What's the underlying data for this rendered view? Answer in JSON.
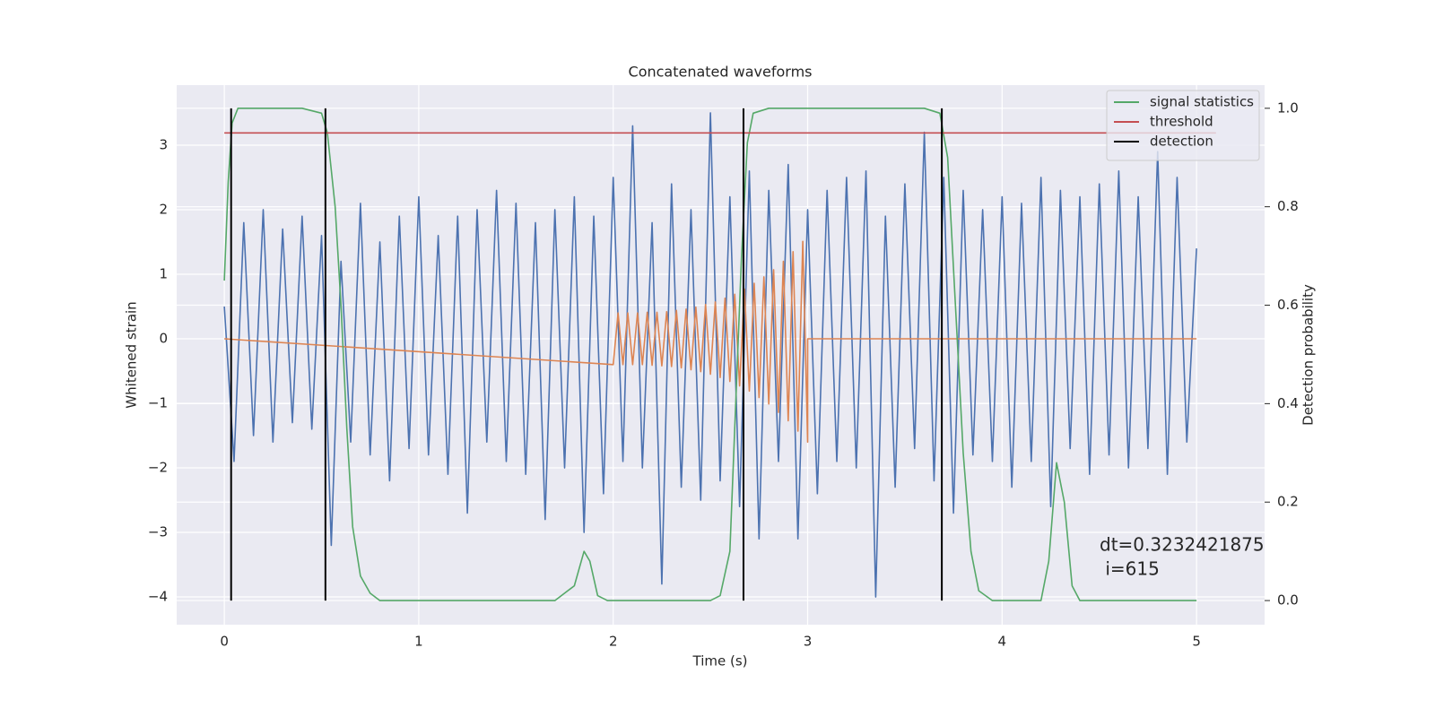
{
  "chart_data": {
    "type": "line",
    "title": "Concatenated waveforms",
    "x_label": "Time (s)",
    "y_label": "Whitened strain",
    "y2_label": "Detection probability",
    "xlim": [
      -0.245,
      5.35
    ],
    "ylim": [
      -4.43,
      3.93
    ],
    "y2lim": [
      -0.049,
      1.047
    ],
    "xticks": [
      0,
      1,
      2,
      3,
      4,
      5
    ],
    "yticks": [
      {
        "value": -4,
        "label": "−4"
      },
      {
        "value": -3,
        "label": "−3"
      },
      {
        "value": -2,
        "label": "−2"
      },
      {
        "value": -1,
        "label": "−1"
      },
      0,
      1,
      2,
      3
    ],
    "y2ticks": [
      {
        "value": 0,
        "label": "0.0"
      },
      {
        "value": 0.2,
        "label": "0.2"
      },
      {
        "value": 0.4,
        "label": "0.4"
      },
      {
        "value": 0.6,
        "label": "0.6"
      },
      {
        "value": 0.8,
        "label": "0.8"
      },
      {
        "value": 1.0,
        "label": "1.0"
      }
    ],
    "grid": true,
    "legend": "upper right",
    "series": [
      {
        "color": "#4c72b0",
        "x": [
          0,
          0.05,
          0.1,
          0.15,
          0.2,
          0.25,
          0.3,
          0.35,
          0.4,
          0.45,
          0.5,
          0.55,
          0.6,
          0.65,
          0.7,
          0.75,
          0.8,
          0.85,
          0.9,
          0.95,
          1,
          1.05,
          1.1,
          1.15,
          1.2,
          1.25,
          1.3,
          1.35,
          1.4,
          1.45,
          1.5,
          1.55,
          1.6,
          1.65,
          1.7,
          1.75,
          1.8,
          1.85,
          1.9,
          1.95,
          2,
          2.05,
          2.1,
          2.15,
          2.2,
          2.25,
          2.3,
          2.35,
          2.4,
          2.45,
          2.5,
          2.55,
          2.6,
          2.65,
          2.7,
          2.75,
          2.8,
          2.85,
          2.9,
          2.95,
          3,
          3.05,
          3.1,
          3.15,
          3.2,
          3.25,
          3.3,
          3.35,
          3.4,
          3.45,
          3.5,
          3.55,
          3.6,
          3.65,
          3.7,
          3.75,
          3.8,
          3.85,
          3.9,
          3.95,
          4,
          4.05,
          4.1,
          4.15,
          4.2,
          4.25,
          4.3,
          4.35,
          4.4,
          4.45,
          4.5,
          4.55,
          4.6,
          4.65,
          4.7,
          4.75,
          4.8,
          4.85,
          4.9,
          4.95,
          5
        ],
        "values": [
          0.5,
          -1.9,
          1.8,
          -1.5,
          2.0,
          -1.6,
          1.7,
          -1.3,
          1.9,
          -1.4,
          1.6,
          -3.2,
          1.2,
          -1.6,
          2.1,
          -1.8,
          1.5,
          -2.2,
          1.9,
          -1.7,
          2.2,
          -1.8,
          1.6,
          -2.1,
          1.9,
          -2.7,
          2.0,
          -1.6,
          2.3,
          -1.9,
          2.1,
          -2.1,
          1.8,
          -2.8,
          2.0,
          -2.0,
          2.2,
          -3.0,
          1.9,
          -2.4,
          2.5,
          -1.9,
          3.3,
          -2.0,
          1.8,
          -3.8,
          2.4,
          -2.3,
          2.0,
          -2.5,
          3.5,
          -2.2,
          2.2,
          -2.6,
          2.6,
          -3.1,
          2.3,
          -1.9,
          2.7,
          -3.1,
          2.0,
          -2.4,
          2.3,
          -1.9,
          2.5,
          -2.0,
          2.6,
          -4.0,
          1.9,
          -2.3,
          2.4,
          -1.7,
          3.2,
          -2.2,
          2.5,
          -2.7,
          2.3,
          -1.8,
          2.0,
          -1.9,
          2.2,
          -2.3,
          2.1,
          -1.9,
          2.5,
          -2.6,
          2.3,
          -1.7,
          2.2,
          -2.1,
          2.4,
          -1.8,
          2.6,
          -2.0,
          2.2,
          -1.7,
          2.9,
          -2.1,
          2.5,
          -1.6,
          1.4
        ]
      },
      {
        "color": "#dd8452",
        "x": [
          0,
          2,
          2.025,
          2.05,
          2.075,
          2.1,
          2.125,
          2.15,
          2.175,
          2.2,
          2.225,
          2.25,
          2.275,
          2.3,
          2.325,
          2.35,
          2.375,
          2.4,
          2.425,
          2.45,
          2.475,
          2.5,
          2.525,
          2.55,
          2.575,
          2.6,
          2.625,
          2.65,
          2.675,
          2.7,
          2.725,
          2.75,
          2.775,
          2.8,
          2.825,
          2.85,
          2.875,
          2.9,
          2.925,
          2.95,
          2.975,
          3,
          3,
          5
        ],
        "values": [
          0,
          -0.4,
          0.4,
          -0.4,
          0.4,
          -0.4,
          0.4,
          -0.4,
          0.41,
          -0.41,
          0.41,
          -0.42,
          0.42,
          -0.43,
          0.44,
          -0.45,
          0.46,
          -0.48,
          0.49,
          -0.51,
          0.53,
          -0.55,
          0.57,
          -0.6,
          0.63,
          -0.66,
          0.69,
          -0.73,
          0.77,
          -0.81,
          0.86,
          -0.91,
          0.96,
          -1.01,
          1.07,
          -1.14,
          1.2,
          -1.27,
          1.35,
          -1.43,
          1.51,
          -1.6,
          0,
          0
        ]
      },
      {
        "name": "signal statistics",
        "color": "#55a868",
        "axis": "y2",
        "x": [
          0,
          0.02,
          0.04,
          0.07,
          0.1,
          0.4,
          0.5,
          0.53,
          0.57,
          0.6,
          0.63,
          0.66,
          0.7,
          0.75,
          0.8,
          1.7,
          1.8,
          1.85,
          1.88,
          1.92,
          1.97,
          2.5,
          2.55,
          2.6,
          2.63,
          2.66,
          2.69,
          2.72,
          2.8,
          3.6,
          3.68,
          3.72,
          3.76,
          3.8,
          3.84,
          3.88,
          3.95,
          4.2,
          4.24,
          4.28,
          4.32,
          4.36,
          4.4,
          5
        ],
        "values": [
          0.65,
          0.85,
          0.97,
          1.0,
          1.0,
          1.0,
          0.99,
          0.95,
          0.8,
          0.6,
          0.35,
          0.15,
          0.05,
          0.015,
          0.0,
          0.0,
          0.03,
          0.1,
          0.08,
          0.01,
          0.0,
          0.0,
          0.01,
          0.1,
          0.4,
          0.7,
          0.93,
          0.99,
          1.0,
          1.0,
          0.99,
          0.9,
          0.6,
          0.3,
          0.1,
          0.02,
          0.0,
          0.0,
          0.08,
          0.28,
          0.2,
          0.03,
          0.0,
          0.0
        ]
      },
      {
        "name": "threshold",
        "color": "#c44e52",
        "axis": "y2",
        "x": [
          0,
          5.1
        ],
        "values": [
          0.95,
          0.95
        ]
      },
      {
        "name": "detection",
        "color": "#000000",
        "axis": "y2",
        "vlines": [
          0.035,
          0.52,
          2.67,
          3.69
        ],
        "span": [
          0,
          1
        ]
      }
    ],
    "annotation": [
      "dt=0.3232421875",
      " i=615"
    ]
  }
}
